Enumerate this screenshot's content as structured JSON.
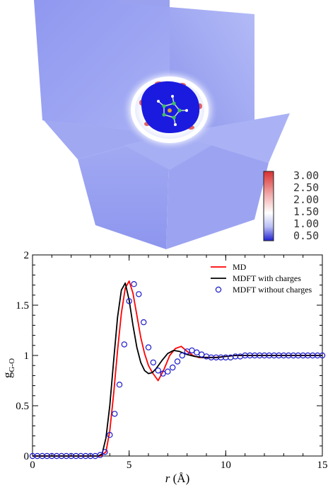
{
  "colorbar": {
    "labels": [
      "3.00",
      "2.50",
      "2.00",
      "1.50",
      "1.00",
      "0.50"
    ],
    "colors": {
      "high": "#e03a3a",
      "mid": "#ffffff",
      "low": "#2a2ad0"
    }
  },
  "scene": {
    "plane_color": "#9aa3f2",
    "shell_color": "#ffffff",
    "core_color": "#1b1be0",
    "red_spot_color": "#e05050"
  },
  "chart_data": {
    "type": "line",
    "xlabel": "r (Å)",
    "xlabel_italic": "r",
    "xlabel_unit": " (Å)",
    "ylabel": "g",
    "ylabel_sub": "G-O",
    "xlim": [
      0,
      15
    ],
    "ylim": [
      0,
      2
    ],
    "xticks": [
      0,
      5,
      10,
      15
    ],
    "yticks": [
      0,
      0.5,
      1,
      1.5,
      2
    ],
    "xtick_labels": [
      "0",
      "5",
      "10",
      "15"
    ],
    "ytick_labels": [
      "0",
      "0.5",
      "1",
      "1.5",
      "2"
    ],
    "minor_x_step": 1,
    "minor_y_step": 0.1,
    "legend": {
      "position": "top-right"
    },
    "series": [
      {
        "name": "MD",
        "style": "line",
        "color": "#ff0000",
        "x": [
          0,
          3.5,
          3.8,
          4.0,
          4.2,
          4.4,
          4.6,
          4.8,
          5.0,
          5.2,
          5.4,
          5.6,
          5.8,
          6.0,
          6.2,
          6.5,
          6.8,
          7.1,
          7.4,
          7.7,
          8.0,
          8.3,
          8.6,
          9.0,
          9.5,
          10.0,
          10.5,
          11.0,
          11.5,
          12.0,
          13.0,
          14.0,
          15.0
        ],
        "y": [
          0,
          0,
          0.04,
          0.25,
          0.62,
          1.05,
          1.42,
          1.67,
          1.74,
          1.62,
          1.4,
          1.18,
          1.02,
          0.9,
          0.83,
          0.75,
          0.86,
          1.0,
          1.07,
          1.09,
          1.04,
          1.0,
          0.98,
          0.98,
          0.98,
          0.99,
          1.0,
          1.0,
          1.0,
          1.0,
          1.0,
          1.0,
          1.0
        ]
      },
      {
        "name": "MDFT with charges",
        "style": "line",
        "color": "#000000",
        "x": [
          0,
          3.4,
          3.6,
          3.8,
          4.0,
          4.2,
          4.4,
          4.6,
          4.8,
          5.0,
          5.2,
          5.4,
          5.6,
          5.8,
          6.0,
          6.2,
          6.4,
          6.7,
          7.0,
          7.3,
          7.6,
          8.0,
          8.4,
          8.8,
          9.2,
          9.6,
          10.0,
          10.5,
          11.0,
          11.5,
          12.0,
          13.0,
          14.0,
          15.0
        ],
        "y": [
          0,
          0,
          0.02,
          0.18,
          0.5,
          0.95,
          1.38,
          1.65,
          1.72,
          1.55,
          1.3,
          1.08,
          0.93,
          0.85,
          0.82,
          0.83,
          0.87,
          0.95,
          1.02,
          1.05,
          1.04,
          1.01,
          0.99,
          0.98,
          0.98,
          0.98,
          0.99,
          1.0,
          1.0,
          1.0,
          1.0,
          1.0,
          1.0,
          1.0
        ]
      },
      {
        "name": "MDFT without charges",
        "style": "markers",
        "color": "#1a1acc",
        "x": [
          0,
          0.25,
          0.5,
          0.75,
          1.0,
          1.25,
          1.5,
          1.75,
          2.0,
          2.25,
          2.5,
          2.75,
          3.0,
          3.25,
          3.5,
          3.75,
          4.0,
          4.25,
          4.5,
          4.75,
          5.0,
          5.25,
          5.5,
          5.75,
          6.0,
          6.25,
          6.5,
          6.75,
          7.0,
          7.25,
          7.5,
          7.75,
          8.0,
          8.25,
          8.5,
          8.75,
          9.0,
          9.25,
          9.5,
          9.75,
          10.0,
          10.25,
          10.5,
          10.75,
          11.0,
          11.25,
          11.5,
          11.75,
          12.0,
          12.25,
          12.5,
          12.75,
          13.0,
          13.25,
          13.5,
          13.75,
          14.0,
          14.25,
          14.5,
          14.75,
          15.0
        ],
        "y": [
          0,
          0,
          0,
          0,
          0,
          0,
          0,
          0,
          0,
          0,
          0,
          0,
          0,
          0,
          0.01,
          0.04,
          0.21,
          0.42,
          0.71,
          1.11,
          1.54,
          1.71,
          1.61,
          1.33,
          1.08,
          0.93,
          0.85,
          0.82,
          0.84,
          0.88,
          0.94,
          1.0,
          1.04,
          1.05,
          1.03,
          1.01,
          0.99,
          0.98,
          0.98,
          0.98,
          0.98,
          0.98,
          0.99,
          0.99,
          1.0,
          1.0,
          1.0,
          1.0,
          1.0,
          1.0,
          1.0,
          1.0,
          1.0,
          1.0,
          1.0,
          1.0,
          1.0,
          1.0,
          1.0,
          1.0,
          1.0
        ]
      }
    ]
  }
}
